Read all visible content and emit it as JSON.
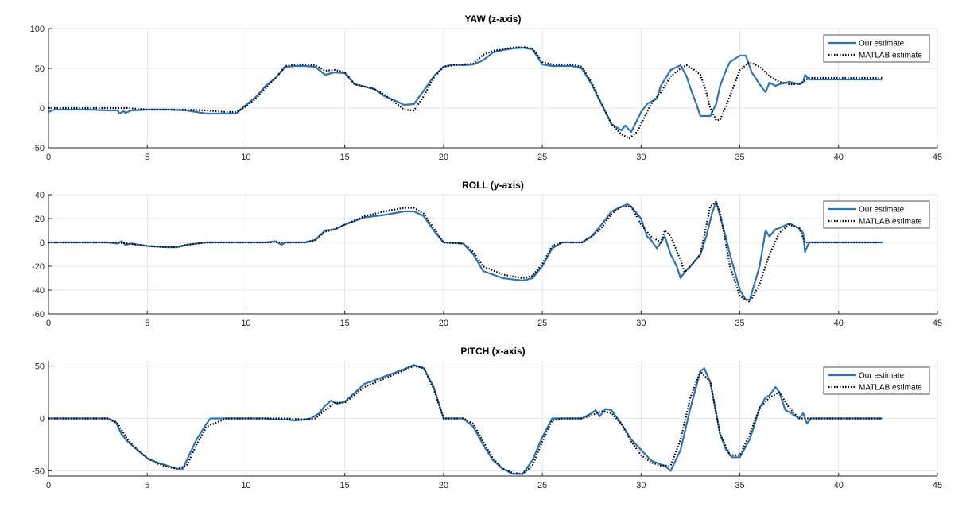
{
  "colors": {
    "our_estimate": "#2E75B6",
    "matlab_estimate": "#000000",
    "grid": "#E6E6E6",
    "axis": "#262626"
  },
  "chart_data": [
    {
      "type": "line",
      "title": "YAW (z-axis)",
      "xlabel": "",
      "ylabel": "",
      "xlim": [
        0,
        45
      ],
      "ylim": [
        -50,
        100
      ],
      "xticks": [
        "0",
        "5",
        "10",
        "15",
        "20",
        "25",
        "30",
        "35",
        "40",
        "45"
      ],
      "yticks": [
        "-50",
        "0",
        "50",
        "100"
      ],
      "grid": true,
      "legend_position": "top-right",
      "series": [
        {
          "name": "Our estimate",
          "style": "solid",
          "x": [
            0,
            0.3,
            1,
            2,
            3,
            3.5,
            3.6,
            3.8,
            3.9,
            4.2,
            5,
            6,
            7,
            8,
            9,
            9.5,
            10,
            10.5,
            11,
            11.5,
            12,
            12.5,
            13,
            13.5,
            13.8,
            14,
            14.5,
            15,
            15.5,
            16,
            16.5,
            17,
            17.5,
            18,
            18.5,
            19,
            19.5,
            20,
            20.5,
            21,
            21.5,
            22,
            22.5,
            23,
            23.5,
            24,
            24.5,
            25,
            25.5,
            26,
            26.5,
            27,
            27.5,
            28,
            28.5,
            29,
            29.2,
            29.5,
            29.7,
            30,
            30.3,
            30.5,
            30.8,
            31,
            31.5,
            32,
            32.3,
            32.5,
            32.8,
            33,
            33.3,
            33.5,
            33.8,
            34,
            34.3,
            34.5,
            35,
            35.3,
            35.6,
            36,
            36.3,
            36.5,
            36.8,
            37,
            37.5,
            38,
            38.2,
            38.3,
            38.5,
            39,
            40,
            41,
            42,
            42.2
          ],
          "y": [
            -5,
            -2,
            -2,
            -2,
            -3,
            -3,
            -7,
            -4,
            -6,
            -3,
            -2,
            -2,
            -3,
            -7,
            -7,
            -7,
            4,
            14,
            28,
            38,
            52,
            53,
            53,
            52,
            46,
            42,
            45,
            44,
            30,
            27,
            24,
            15,
            10,
            4,
            5,
            22,
            40,
            52,
            55,
            54,
            55,
            60,
            70,
            73,
            75,
            76,
            74,
            55,
            53,
            53,
            53,
            50,
            30,
            5,
            -20,
            -28,
            -22,
            -30,
            -20,
            -5,
            5,
            8,
            12,
            28,
            48,
            54,
            40,
            25,
            5,
            -10,
            -10,
            -10,
            5,
            28,
            48,
            58,
            66,
            66,
            45,
            30,
            20,
            32,
            28,
            30,
            33,
            30,
            32,
            42,
            36,
            36,
            36,
            36,
            36,
            36
          ]
        },
        {
          "name": "MATLAB estimate",
          "style": "dotted",
          "x": [
            0,
            1,
            2,
            3,
            3.5,
            4,
            5,
            6,
            7,
            8,
            9,
            9.5,
            10,
            10.5,
            11,
            11.5,
            12,
            12.5,
            13,
            13.5,
            14,
            14.5,
            15,
            15.5,
            16,
            16.5,
            17,
            17.5,
            18,
            18.5,
            19,
            19.5,
            20,
            20.5,
            21,
            21.5,
            22,
            22.5,
            23,
            23.5,
            24,
            24.5,
            25,
            25.5,
            26,
            26.5,
            27,
            27.5,
            28,
            28.5,
            29,
            29.4,
            29.8,
            30,
            30.5,
            31,
            31.5,
            32,
            32.3,
            32.7,
            33,
            33.3,
            33.5,
            33.8,
            34,
            34.5,
            35,
            35.5,
            36,
            36.5,
            37,
            37.5,
            38,
            38.5,
            39,
            40,
            41,
            42,
            42.2
          ],
          "y": [
            0,
            0,
            0,
            0,
            0,
            0,
            -2,
            -2,
            -2,
            -3,
            -5,
            -5,
            2,
            12,
            25,
            38,
            53,
            55,
            55,
            54,
            47,
            48,
            45,
            30,
            27,
            24,
            17,
            8,
            -2,
            -3,
            15,
            38,
            52,
            54,
            55,
            56,
            67,
            72,
            74,
            76,
            77,
            75,
            58,
            55,
            55,
            55,
            52,
            32,
            5,
            -20,
            -33,
            -38,
            -30,
            -20,
            5,
            20,
            40,
            50,
            54,
            48,
            42,
            20,
            0,
            -15,
            -15,
            15,
            48,
            58,
            52,
            40,
            33,
            30,
            30,
            38,
            38,
            38,
            38,
            38,
            38
          ]
        }
      ]
    },
    {
      "type": "line",
      "title": "ROLL (y-axis)",
      "xlabel": "",
      "ylabel": "",
      "xlim": [
        0,
        45
      ],
      "ylim": [
        -60,
        40
      ],
      "xticks": [
        "0",
        "5",
        "10",
        "15",
        "20",
        "25",
        "30",
        "35",
        "40",
        "45"
      ],
      "yticks": [
        "-60",
        "-40",
        "-20",
        "0",
        "20",
        "40"
      ],
      "grid": true,
      "legend_position": "top-right",
      "series": [
        {
          "name": "Our estimate",
          "style": "solid",
          "x": [
            0,
            1,
            2,
            3,
            3.5,
            3.7,
            3.9,
            4.2,
            5,
            6,
            6.5,
            7,
            8,
            9,
            10,
            11,
            11.5,
            11.8,
            12,
            13,
            13.5,
            14,
            14.5,
            15,
            16,
            17,
            18,
            18.5,
            19,
            19.5,
            20,
            21,
            21.5,
            22,
            23,
            24,
            24.5,
            25,
            25.5,
            26,
            27,
            27.5,
            28,
            28.5,
            29,
            29.3,
            29.5,
            30,
            30.3,
            30.5,
            30.8,
            31,
            31.2,
            31.5,
            31.8,
            32,
            32.2,
            32.5,
            33,
            33.3,
            33.6,
            33.8,
            34.2,
            34.5,
            35,
            35.3,
            35.5,
            36,
            36.3,
            36.5,
            36.8,
            37,
            37.5,
            38,
            38.2,
            38.3,
            38.5,
            39,
            40,
            41,
            42,
            42.2
          ],
          "y": [
            0,
            0,
            0,
            0,
            -1,
            1,
            -2,
            -1,
            -3,
            -4,
            -4,
            -2,
            0,
            0,
            0,
            0,
            1,
            -2,
            0,
            0,
            2,
            10,
            11,
            15,
            21,
            23,
            26,
            26,
            22,
            10,
            0,
            -1,
            -10,
            -24,
            -30,
            -32,
            -30,
            -20,
            -5,
            0,
            0,
            5,
            15,
            26,
            30,
            32,
            30,
            20,
            5,
            2,
            -5,
            0,
            5,
            -10,
            -20,
            -30,
            -25,
            -20,
            -10,
            5,
            25,
            34,
            10,
            -10,
            -40,
            -48,
            -48,
            -20,
            10,
            5,
            11,
            12,
            16,
            12,
            8,
            -8,
            0,
            0,
            0,
            0,
            0,
            0
          ]
        },
        {
          "name": "MATLAB estimate",
          "style": "dotted",
          "x": [
            0,
            1,
            2,
            3,
            3.5,
            4,
            5,
            6,
            6.5,
            7,
            8,
            9,
            10,
            11,
            12,
            13,
            13.5,
            14,
            14.5,
            15,
            16,
            17,
            18,
            18.5,
            19,
            19.5,
            20,
            21,
            21.5,
            22,
            23,
            24,
            24.5,
            25,
            25.5,
            26,
            27,
            27.5,
            28,
            28.5,
            29,
            29.5,
            30,
            30.5,
            31,
            31.2,
            31.5,
            32,
            32.2,
            32.5,
            33,
            33.5,
            33.8,
            34,
            34.5,
            35,
            35.5,
            36,
            36.5,
            37,
            37.5,
            38,
            38.3,
            38.5,
            39,
            40,
            41,
            42,
            42.2
          ],
          "y": [
            0,
            0,
            0,
            0,
            0,
            -1,
            -3,
            -4,
            -4,
            -2,
            0,
            0,
            0,
            0,
            0,
            0,
            2,
            9,
            11,
            15,
            22,
            26,
            29,
            29,
            24,
            12,
            0,
            -1,
            -8,
            -20,
            -27,
            -30,
            -28,
            -18,
            -3,
            0,
            0,
            5,
            12,
            24,
            30,
            30,
            15,
            5,
            0,
            10,
            5,
            -15,
            -25,
            -20,
            -10,
            30,
            34,
            25,
            -20,
            -45,
            -50,
            -35,
            -10,
            8,
            15,
            12,
            0,
            0,
            0,
            0,
            0,
            0,
            0
          ]
        }
      ]
    },
    {
      "type": "line",
      "title": "PITCH (x-axis)",
      "xlabel": "",
      "ylabel": "",
      "xlim": [
        0,
        45
      ],
      "ylim": [
        -55,
        55
      ],
      "xticks": [
        "0",
        "5",
        "10",
        "15",
        "20",
        "25",
        "30",
        "35",
        "40",
        "45"
      ],
      "yticks": [
        "-50",
        "0",
        "50"
      ],
      "grid": true,
      "legend_position": "top-right",
      "series": [
        {
          "name": "Our estimate",
          "style": "solid",
          "x": [
            0,
            1,
            2,
            3,
            3.4,
            3.7,
            4,
            4.5,
            5,
            5.5,
            6,
            6.5,
            6.8,
            7,
            7.5,
            8,
            8.2,
            9,
            10,
            11,
            11.5,
            12,
            12.5,
            13,
            13.3,
            13.7,
            14,
            14.3,
            14.6,
            15,
            16,
            17,
            18,
            18.5,
            19,
            19.5,
            20,
            21,
            21.5,
            22,
            22.5,
            23,
            23.5,
            24,
            24.5,
            25,
            25.5,
            26,
            27,
            27.5,
            27.7,
            27.9,
            28.2,
            28.5,
            29,
            29.5,
            30,
            30.5,
            31,
            31.2,
            31.5,
            32,
            32.5,
            33,
            33.2,
            33.5,
            34,
            34.3,
            34.6,
            35,
            35.5,
            36,
            36.3,
            36.5,
            36.8,
            37,
            37.3,
            37.6,
            38,
            38.2,
            38.4,
            38.6,
            39,
            40,
            41,
            42,
            42.2
          ],
          "y": [
            0,
            0,
            0,
            0,
            -3,
            -15,
            -22,
            -30,
            -38,
            -42,
            -45,
            -48,
            -48,
            -40,
            -20,
            -5,
            0,
            0,
            0,
            0,
            -1,
            -1,
            -2,
            -1,
            0,
            5,
            12,
            17,
            14,
            16,
            33,
            40,
            47,
            51,
            48,
            30,
            0,
            0,
            -8,
            -25,
            -40,
            -48,
            -53,
            -53,
            -40,
            -18,
            0,
            0,
            0,
            5,
            8,
            2,
            9,
            8,
            -5,
            -20,
            -30,
            -40,
            -44,
            -45,
            -50,
            -30,
            10,
            45,
            48,
            35,
            -15,
            -30,
            -37,
            -37,
            -20,
            10,
            20,
            22,
            30,
            25,
            8,
            5,
            0,
            5,
            -5,
            0,
            0,
            0,
            0,
            0,
            0
          ]
        },
        {
          "name": "MATLAB estimate",
          "style": "dotted",
          "x": [
            0,
            1,
            2,
            3,
            3.5,
            4,
            4.5,
            5,
            5.5,
            6,
            6.5,
            7,
            7.5,
            8,
            9,
            10,
            11,
            12,
            13,
            13.5,
            14,
            14.5,
            15,
            16,
            17,
            18,
            18.5,
            19,
            19.5,
            20,
            21,
            21.5,
            22,
            22.5,
            23,
            23.5,
            24,
            24.5,
            25,
            25.5,
            26,
            27,
            27.5,
            28,
            28.5,
            29,
            29.5,
            30,
            30.5,
            31,
            31.5,
            32,
            32.5,
            33,
            33.5,
            34,
            34.5,
            35,
            35.5,
            36,
            36.5,
            37,
            37.5,
            38,
            38.5,
            39,
            40,
            41,
            42,
            42.2
          ],
          "y": [
            0,
            0,
            0,
            0,
            -5,
            -20,
            -30,
            -38,
            -43,
            -46,
            -48,
            -45,
            -25,
            -8,
            0,
            0,
            0,
            0,
            -1,
            0,
            8,
            15,
            15,
            30,
            38,
            46,
            50,
            48,
            28,
            0,
            0,
            -5,
            -22,
            -38,
            -48,
            -52,
            -53,
            -45,
            -22,
            -2,
            0,
            0,
            3,
            7,
            5,
            -5,
            -22,
            -35,
            -42,
            -45,
            -45,
            -20,
            20,
            45,
            35,
            -15,
            -35,
            -35,
            -15,
            10,
            20,
            25,
            10,
            0,
            0,
            0,
            0,
            0,
            0,
            0
          ]
        }
      ]
    }
  ]
}
